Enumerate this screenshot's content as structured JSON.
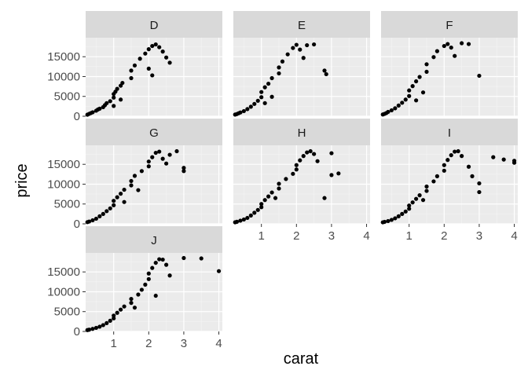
{
  "chart_data": {
    "type": "scatter",
    "facet_var": "color",
    "facets": [
      "D",
      "E",
      "F",
      "G",
      "H",
      "I",
      "J"
    ],
    "facet_layout": "wrap, 3 columns",
    "xlabel": "carat",
    "ylabel": "price",
    "xlim": [
      0.2,
      4.1
    ],
    "ylim": [
      0,
      19000
    ],
    "x_ticks": [
      1,
      2,
      3,
      4
    ],
    "x_tick_labels": [
      "1",
      "2",
      "3",
      "4"
    ],
    "y_ticks": [
      0,
      5000,
      10000,
      15000
    ],
    "y_tick_labels": [
      "0",
      "5000",
      "10000",
      "15000"
    ],
    "grid": true,
    "legend": "none",
    "point_color": "#000000",
    "panel_background": "#ebebeb",
    "strip_background": "#d9d9d9",
    "series": [
      {
        "facet": "D",
        "points": [
          [
            0.25,
            400
          ],
          [
            0.3,
            600
          ],
          [
            0.35,
            800
          ],
          [
            0.4,
            1000
          ],
          [
            0.5,
            1400
          ],
          [
            0.55,
            1700
          ],
          [
            0.6,
            1900
          ],
          [
            0.7,
            2300
          ],
          [
            0.75,
            2800
          ],
          [
            0.8,
            3300
          ],
          [
            0.9,
            3800
          ],
          [
            1.0,
            4700
          ],
          [
            1.0,
            5600
          ],
          [
            1.05,
            6200
          ],
          [
            1.1,
            6900
          ],
          [
            1.2,
            7700
          ],
          [
            1.25,
            8400
          ],
          [
            1.5,
            9600
          ],
          [
            1.5,
            11500
          ],
          [
            1.6,
            12800
          ],
          [
            1.75,
            14500
          ],
          [
            1.9,
            15800
          ],
          [
            2.0,
            16900
          ],
          [
            2.1,
            17700
          ],
          [
            2.2,
            18100
          ],
          [
            2.3,
            17400
          ],
          [
            2.4,
            16300
          ],
          [
            2.5,
            14800
          ],
          [
            2.0,
            12000
          ],
          [
            2.1,
            10300
          ],
          [
            2.6,
            13500
          ],
          [
            1.0,
            2600
          ],
          [
            1.2,
            4200
          ]
        ]
      },
      {
        "facet": "E",
        "points": [
          [
            0.25,
            420
          ],
          [
            0.3,
            550
          ],
          [
            0.35,
            750
          ],
          [
            0.4,
            950
          ],
          [
            0.5,
            1300
          ],
          [
            0.6,
            1800
          ],
          [
            0.7,
            2400
          ],
          [
            0.8,
            3100
          ],
          [
            0.9,
            3900
          ],
          [
            1.0,
            4800
          ],
          [
            1.0,
            6100
          ],
          [
            1.1,
            7300
          ],
          [
            1.2,
            8200
          ],
          [
            1.3,
            9600
          ],
          [
            1.5,
            10800
          ],
          [
            1.5,
            12300
          ],
          [
            1.6,
            13800
          ],
          [
            1.75,
            15600
          ],
          [
            1.9,
            17200
          ],
          [
            2.0,
            18000
          ],
          [
            2.1,
            16800
          ],
          [
            2.2,
            14700
          ],
          [
            2.3,
            17900
          ],
          [
            2.5,
            18100
          ],
          [
            2.8,
            11500
          ],
          [
            2.85,
            10600
          ],
          [
            1.1,
            3300
          ],
          [
            1.3,
            4900
          ]
        ]
      },
      {
        "facet": "F",
        "points": [
          [
            0.25,
            450
          ],
          [
            0.3,
            600
          ],
          [
            0.35,
            800
          ],
          [
            0.4,
            1100
          ],
          [
            0.5,
            1500
          ],
          [
            0.6,
            2000
          ],
          [
            0.7,
            2700
          ],
          [
            0.8,
            3400
          ],
          [
            0.9,
            4200
          ],
          [
            1.0,
            5100
          ],
          [
            1.0,
            6500
          ],
          [
            1.1,
            7600
          ],
          [
            1.2,
            8800
          ],
          [
            1.3,
            9900
          ],
          [
            1.5,
            11200
          ],
          [
            1.5,
            13100
          ],
          [
            1.7,
            14900
          ],
          [
            1.8,
            16400
          ],
          [
            2.0,
            17700
          ],
          [
            2.1,
            18200
          ],
          [
            2.2,
            17300
          ],
          [
            2.3,
            15200
          ],
          [
            2.5,
            18400
          ],
          [
            2.7,
            18200
          ],
          [
            3.0,
            10200
          ],
          [
            1.2,
            4000
          ],
          [
            1.4,
            6000
          ]
        ]
      },
      {
        "facet": "G",
        "points": [
          [
            0.25,
            430
          ],
          [
            0.3,
            580
          ],
          [
            0.4,
            900
          ],
          [
            0.5,
            1300
          ],
          [
            0.6,
            1900
          ],
          [
            0.7,
            2500
          ],
          [
            0.8,
            3200
          ],
          [
            0.9,
            3900
          ],
          [
            1.0,
            4700
          ],
          [
            1.0,
            5800
          ],
          [
            1.1,
            6700
          ],
          [
            1.2,
            7600
          ],
          [
            1.3,
            8600
          ],
          [
            1.5,
            9700
          ],
          [
            1.5,
            10800
          ],
          [
            1.6,
            12100
          ],
          [
            1.8,
            13300
          ],
          [
            2.0,
            14500
          ],
          [
            2.0,
            15700
          ],
          [
            2.1,
            16800
          ],
          [
            2.2,
            17900
          ],
          [
            2.3,
            18200
          ],
          [
            2.4,
            16400
          ],
          [
            2.5,
            15200
          ],
          [
            2.6,
            17400
          ],
          [
            2.8,
            18300
          ],
          [
            3.0,
            13300
          ],
          [
            3.0,
            14100
          ],
          [
            1.3,
            5500
          ],
          [
            1.7,
            8500
          ]
        ]
      },
      {
        "facet": "H",
        "points": [
          [
            0.25,
            400
          ],
          [
            0.3,
            520
          ],
          [
            0.4,
            800
          ],
          [
            0.5,
            1100
          ],
          [
            0.6,
            1500
          ],
          [
            0.7,
            2100
          ],
          [
            0.8,
            2800
          ],
          [
            0.9,
            3500
          ],
          [
            1.0,
            4200
          ],
          [
            1.0,
            5000
          ],
          [
            1.1,
            6000
          ],
          [
            1.2,
            6900
          ],
          [
            1.3,
            7900
          ],
          [
            1.5,
            8900
          ],
          [
            1.5,
            10100
          ],
          [
            1.7,
            11300
          ],
          [
            1.9,
            12600
          ],
          [
            2.0,
            13700
          ],
          [
            2.0,
            14800
          ],
          [
            2.1,
            16000
          ],
          [
            2.2,
            17100
          ],
          [
            2.3,
            18000
          ],
          [
            2.4,
            18300
          ],
          [
            2.5,
            17600
          ],
          [
            2.6,
            15800
          ],
          [
            3.0,
            12300
          ],
          [
            3.2,
            12700
          ],
          [
            3.0,
            17800
          ],
          [
            2.8,
            6500
          ],
          [
            1.4,
            6500
          ]
        ]
      },
      {
        "facet": "I",
        "points": [
          [
            0.25,
            380
          ],
          [
            0.3,
            500
          ],
          [
            0.4,
            700
          ],
          [
            0.5,
            1000
          ],
          [
            0.6,
            1400
          ],
          [
            0.7,
            1900
          ],
          [
            0.8,
            2500
          ],
          [
            0.9,
            3100
          ],
          [
            1.0,
            3800
          ],
          [
            1.0,
            4600
          ],
          [
            1.1,
            5400
          ],
          [
            1.2,
            6300
          ],
          [
            1.3,
            7200
          ],
          [
            1.5,
            8300
          ],
          [
            1.5,
            9400
          ],
          [
            1.7,
            10700
          ],
          [
            1.8,
            12000
          ],
          [
            2.0,
            13400
          ],
          [
            2.0,
            14800
          ],
          [
            2.1,
            16100
          ],
          [
            2.2,
            17300
          ],
          [
            2.3,
            18200
          ],
          [
            2.4,
            18300
          ],
          [
            2.5,
            17100
          ],
          [
            2.7,
            14400
          ],
          [
            2.8,
            12000
          ],
          [
            3.0,
            10200
          ],
          [
            3.0,
            8000
          ],
          [
            3.4,
            16800
          ],
          [
            3.7,
            16200
          ],
          [
            4.0,
            15900
          ],
          [
            4.0,
            15400
          ],
          [
            1.4,
            6000
          ]
        ]
      },
      {
        "facet": "J",
        "points": [
          [
            0.25,
            350
          ],
          [
            0.3,
            450
          ],
          [
            0.4,
            650
          ],
          [
            0.5,
            900
          ],
          [
            0.6,
            1200
          ],
          [
            0.7,
            1600
          ],
          [
            0.8,
            2100
          ],
          [
            0.9,
            2700
          ],
          [
            1.0,
            3300
          ],
          [
            1.0,
            4000
          ],
          [
            1.1,
            4700
          ],
          [
            1.2,
            5500
          ],
          [
            1.3,
            6300
          ],
          [
            1.5,
            7200
          ],
          [
            1.5,
            8200
          ],
          [
            1.7,
            9300
          ],
          [
            1.8,
            10500
          ],
          [
            1.9,
            11800
          ],
          [
            2.0,
            13200
          ],
          [
            2.0,
            14600
          ],
          [
            2.1,
            16000
          ],
          [
            2.2,
            17300
          ],
          [
            2.3,
            18200
          ],
          [
            2.4,
            18100
          ],
          [
            2.5,
            16800
          ],
          [
            2.6,
            14100
          ],
          [
            3.0,
            18500
          ],
          [
            3.5,
            18400
          ],
          [
            4.0,
            15200
          ],
          [
            2.2,
            9000
          ],
          [
            1.6,
            6000
          ]
        ]
      }
    ]
  }
}
